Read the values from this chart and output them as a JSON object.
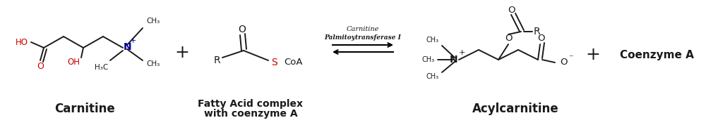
{
  "background_color": "#ffffff",
  "carnitine_label": "Carnitine",
  "fatty_acid_label": "Fatty Acid complex\nwith coenzyme A",
  "acylcarnitine_label": "Acylcarnitine",
  "coenzyme_label": "Coenzyme A",
  "enzyme_line1": "Carnitine",
  "enzyme_line2": "Palmitoytransferase I",
  "carnitine_color_acid": "#cc0000",
  "carnitine_color_N": "#000099",
  "fatty_acid_color_S": "#cc0000",
  "fig_width": 10.0,
  "fig_height": 1.78
}
